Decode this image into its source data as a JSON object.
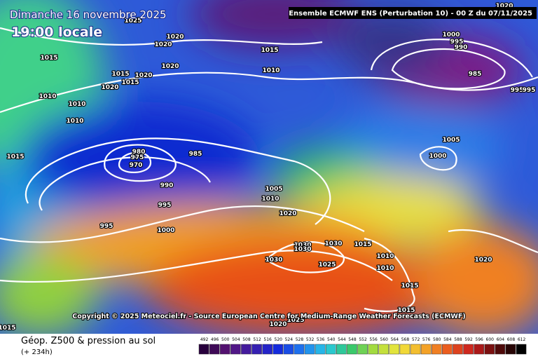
{
  "header": {
    "date": "Dimanche 16 novembre 2025",
    "time": "19:00 locale",
    "run": "Ensemble ECMWF ENS  (Perturbation 10)  -  00 Z du 07/11/2025"
  },
  "copyright": "Copyright © 2025 Meteociel.fr - Source European Centre for Medium-Range Weather Forecasts (ECMWF)",
  "footer": {
    "title": "Géop. Z500 & pression au sol",
    "lead": "(+ 234h)"
  },
  "legend": {
    "values": [
      492,
      496,
      500,
      504,
      508,
      512,
      516,
      520,
      524,
      528,
      532,
      536,
      540,
      544,
      548,
      552,
      556,
      560,
      564,
      568,
      572,
      576,
      580,
      584,
      588,
      592,
      596,
      600,
      604,
      608,
      612
    ]
  },
  "isobar_labels": [
    1020,
    1020,
    1015,
    1020,
    1015,
    1010,
    1015,
    1020,
    1015,
    1020,
    1010,
    1010,
    1010,
    1000,
    995,
    990,
    985,
    995,
    995,
    1020,
    1025,
    1005,
    1000,
    980,
    975,
    970,
    985,
    990,
    995,
    995,
    1000,
    1015,
    1005,
    1010,
    1020,
    1030,
    1030,
    1030,
    1030,
    1025,
    1015,
    1010,
    1010,
    1015,
    1020,
    1015,
    1020,
    1025,
    1015
  ]
}
